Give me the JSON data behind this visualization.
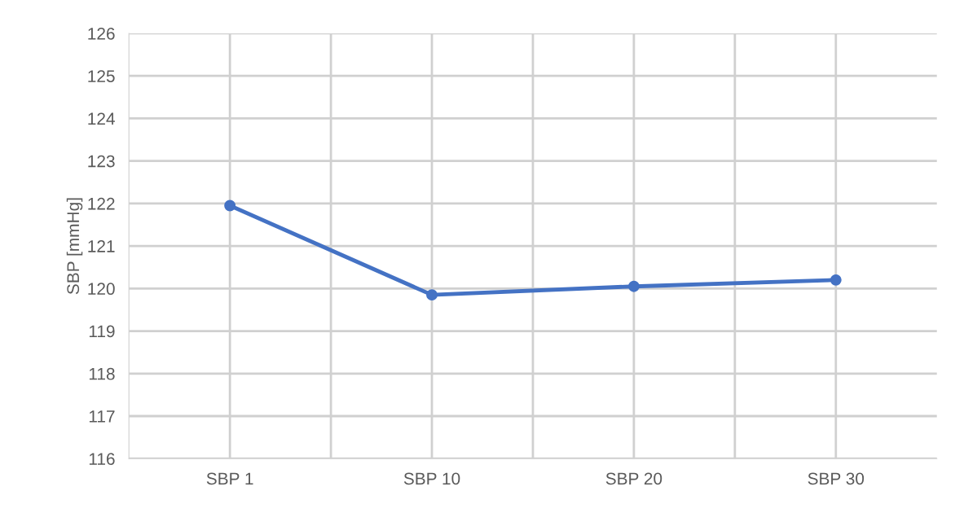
{
  "chart_data": {
    "type": "line",
    "ylabel": "SBP [mmHg]",
    "categories": [
      "SBP 1",
      "SBP 10",
      "SBP 20",
      "SBP 30"
    ],
    "series": [
      {
        "color": "#4472c4",
        "values": [
          121.95,
          119.85,
          120.05,
          120.2
        ]
      }
    ],
    "ylim": [
      116,
      126
    ],
    "yticks": [
      116,
      117,
      118,
      119,
      120,
      121,
      122,
      123,
      124,
      125,
      126
    ],
    "grid": true,
    "marker": "circle",
    "line_style": "solid"
  }
}
